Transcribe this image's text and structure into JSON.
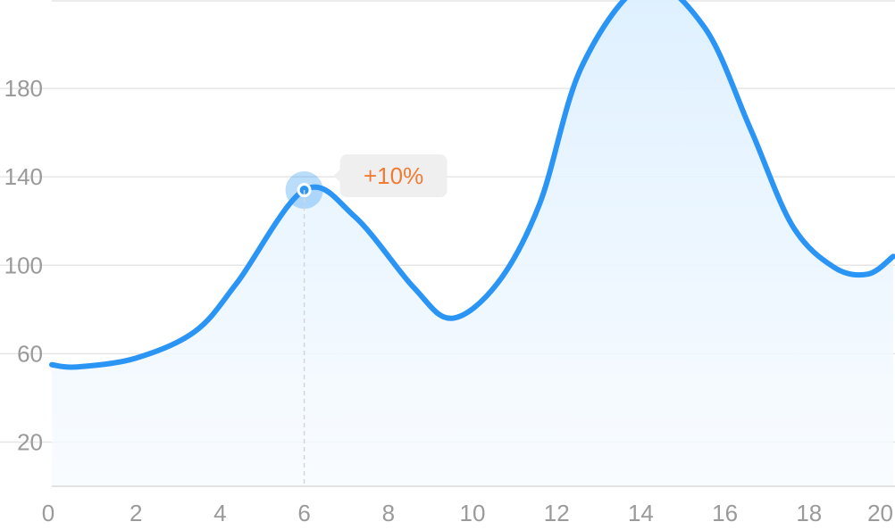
{
  "chart_data": {
    "type": "area",
    "title": "",
    "xlabel": "",
    "ylabel": "",
    "xlim": [
      0,
      20
    ],
    "ylim": [
      0,
      220
    ],
    "x_ticks": [
      0,
      2,
      4,
      6,
      8,
      10,
      12,
      14,
      16,
      18,
      20
    ],
    "y_ticks": [
      20,
      60,
      100,
      140,
      180
    ],
    "grid": true,
    "colors": {
      "line": "#2b95f5",
      "fill": "#e3f1fd",
      "highlight": "#2b95f5",
      "tooltip_text": "#f07c33",
      "tooltip_bg": "#efefef"
    },
    "series": [
      {
        "x": [
          0,
          0.6,
          2,
          3.4,
          4.4,
          6,
          7.2,
          8.6,
          9.5,
          10.6,
          11.6,
          12.6,
          14.1,
          15.5,
          16.6,
          17.6,
          18.6,
          19.4,
          20
        ],
        "y": [
          55,
          54,
          58,
          70,
          92,
          134,
          122,
          90,
          76,
          92,
          128,
          190,
          227,
          208,
          162,
          118,
          99,
          96,
          104
        ]
      }
    ],
    "annotations": [
      {
        "x": 6,
        "y": 134,
        "text": "+10%"
      }
    ]
  }
}
